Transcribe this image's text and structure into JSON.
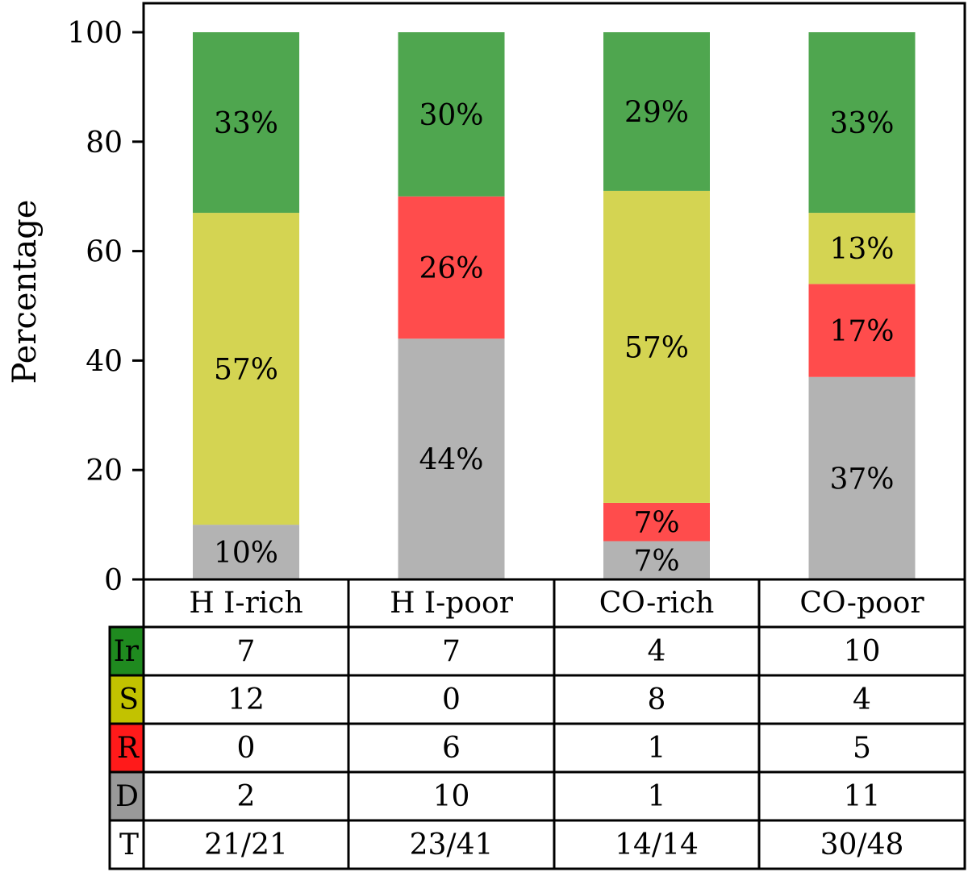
{
  "chart_data": {
    "type": "bar",
    "stacked": true,
    "title": "",
    "xlabel": "",
    "ylabel": "Percentage",
    "ylim": [
      0,
      100
    ],
    "yticks": [
      "0",
      "20",
      "40",
      "60",
      "80",
      "100"
    ],
    "categories": [
      "H I-rich",
      "H I-poor",
      "CO-rich",
      "CO-poor"
    ],
    "series": [
      {
        "name": "D",
        "color": "#b3b3b3",
        "values": [
          10,
          44,
          7,
          37
        ],
        "labels": [
          "10%",
          "44%",
          "7%",
          "37%"
        ]
      },
      {
        "name": "R",
        "color": "#ff4c4c",
        "values": [
          0,
          26,
          7,
          17
        ],
        "labels": [
          "",
          "26%",
          "7%",
          "17%"
        ]
      },
      {
        "name": "S",
        "color": "#d4d452",
        "values": [
          57,
          0,
          57,
          13
        ],
        "labels": [
          "57%",
          "",
          "57%",
          "13%"
        ]
      },
      {
        "name": "Ir",
        "color": "#4fa64f",
        "values": [
          33,
          30,
          29,
          33
        ],
        "labels": [
          "33%",
          "30%",
          "29%",
          "33%"
        ]
      }
    ],
    "table": {
      "header": [
        "H I-rich",
        "H I-poor",
        "CO-rich",
        "CO-poor"
      ],
      "rows": [
        {
          "label": "Ir",
          "color": "#1f8a1f",
          "cells": [
            "7",
            "7",
            "4",
            "10"
          ]
        },
        {
          "label": "S",
          "color": "#c2c200",
          "cells": [
            "12",
            "0",
            "8",
            "4"
          ]
        },
        {
          "label": "R",
          "color": "#ff1a1a",
          "cells": [
            "0",
            "6",
            "1",
            "5"
          ]
        },
        {
          "label": "D",
          "color": "#999999",
          "cells": [
            "2",
            "10",
            "1",
            "11"
          ]
        },
        {
          "label": "T",
          "color": "#ffffff",
          "cells": [
            "21/21",
            "23/41",
            "14/14",
            "30/48"
          ]
        }
      ]
    }
  }
}
